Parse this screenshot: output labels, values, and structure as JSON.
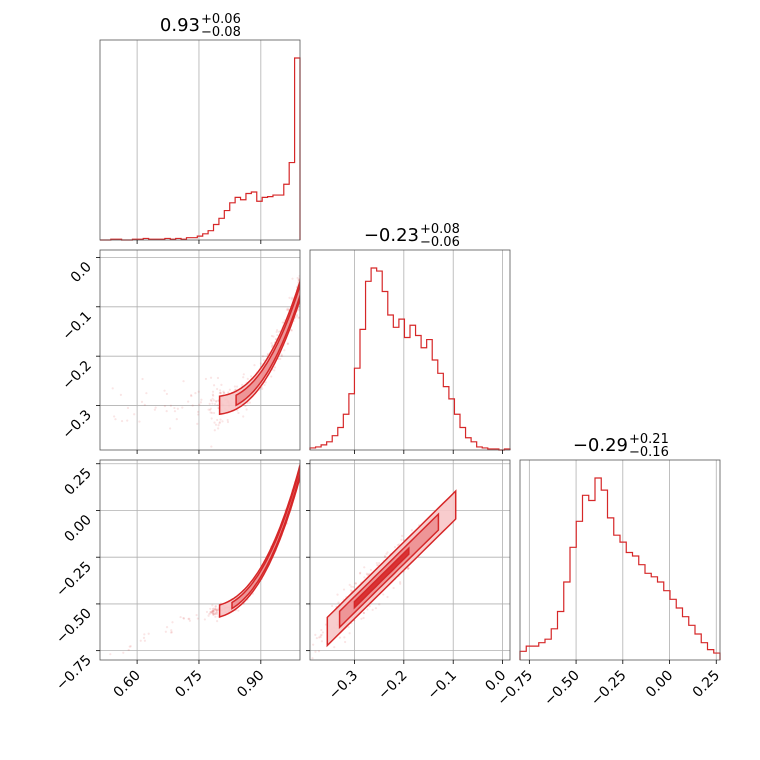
{
  "colors": {
    "accent": "#d62728",
    "fill_light": "#f7c7c8",
    "fill_mid": "#ec8f91",
    "grid": "#b0b0b0"
  },
  "chart_data": {
    "type": "corner",
    "titles": [
      {
        "main": "0.93",
        "plus": "+0.06",
        "minus": "−0.08"
      },
      {
        "main": "−0.23",
        "plus": "+0.08",
        "minus": "−0.06"
      },
      {
        "main": "−0.29",
        "plus": "+0.21",
        "minus": "−0.16"
      }
    ],
    "axes": [
      {
        "range": [
          0.51,
          0.995
        ],
        "ticks": [
          0.6,
          0.75,
          0.9
        ],
        "tick_labels": [
          "0.60",
          "0.75",
          "0.90"
        ]
      },
      {
        "range": [
          -0.39,
          0.015
        ],
        "ticks": [
          -0.3,
          -0.2,
          -0.1,
          0.0
        ],
        "tick_labels": [
          "−0.3",
          "−0.2",
          "−0.1",
          "0.0"
        ]
      },
      {
        "range": [
          -0.8,
          0.27
        ],
        "ticks": [
          -0.75,
          -0.5,
          -0.25,
          0.0,
          0.25
        ],
        "tick_labels": [
          "−0.75",
          "−0.50",
          "−0.25",
          "0.00",
          "0.25"
        ]
      }
    ],
    "histograms": [
      {
        "param": 0,
        "bin_edges": [
          0.51,
          0.995
        ],
        "counts": [
          0,
          0,
          1,
          1,
          0,
          0,
          1,
          1,
          2,
          1,
          1,
          1,
          2,
          1,
          2,
          1,
          3,
          3,
          5,
          8,
          12,
          20,
          28,
          38,
          48,
          55,
          52,
          60,
          62,
          50,
          55,
          56,
          58,
          58,
          72,
          100,
          235
        ]
      },
      {
        "param": 1,
        "bin_edges": [
          -0.39,
          0.015
        ],
        "counts": [
          2,
          3,
          5,
          8,
          14,
          22,
          35,
          55,
          80,
          118,
          165,
          178,
          175,
          155,
          132,
          120,
          128,
          110,
          122,
          112,
          100,
          108,
          88,
          75,
          62,
          50,
          35,
          22,
          12,
          8,
          3,
          2,
          1,
          1,
          0,
          1
        ]
      },
      {
        "param": 2,
        "bin_edges": [
          -0.8,
          0.27
        ],
        "counts": [
          5,
          8,
          8,
          10,
          12,
          18,
          28,
          45,
          65,
          80,
          95,
          92,
          105,
          98,
          82,
          72,
          68,
          62,
          60,
          55,
          50,
          48,
          45,
          40,
          35,
          30,
          25,
          20,
          15,
          10,
          6,
          4
        ]
      }
    ],
    "scatter_2d": [
      {
        "x_param": 0,
        "y_param": 1,
        "relation": "curved: y increases steeply as x approaches 0.99"
      },
      {
        "x_param": 0,
        "y_param": 2,
        "relation": "curved: y increases steeply as x approaches 0.99"
      },
      {
        "x_param": 1,
        "y_param": 2,
        "relation": "positively correlated linear band"
      }
    ],
    "grid": true
  }
}
